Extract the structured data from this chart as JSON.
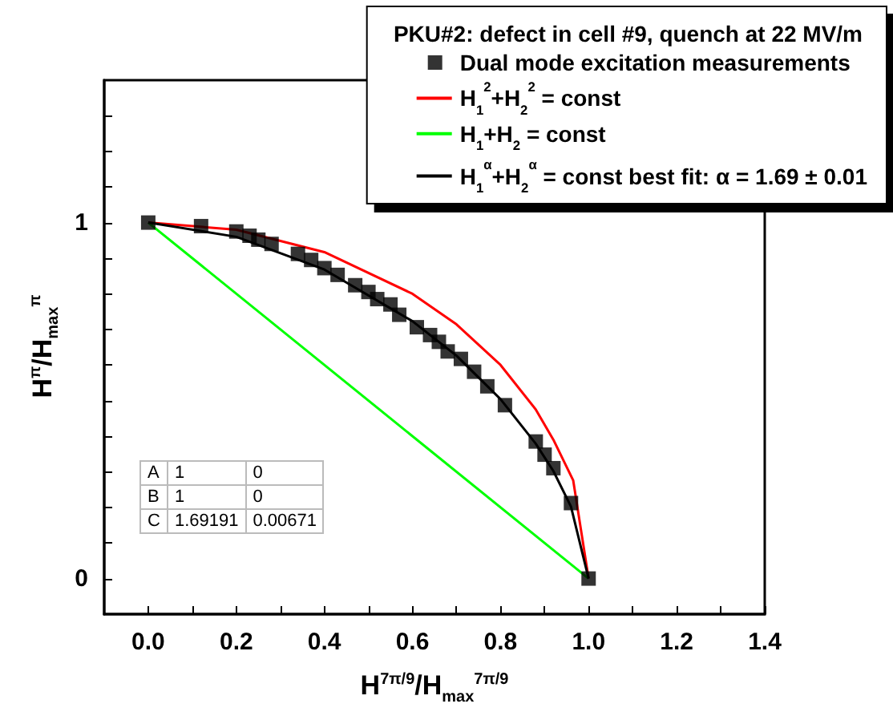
{
  "chart_data": {
    "type": "scatter",
    "legend_title": "PKU#2: defect in cell #9, quench at 22 MV/m",
    "xlabel": "H$^{7π/9}$/H$_{max}$$^{7π/9}$",
    "ylabel": "H$^{π}$/H$_{max}$$^{π}$",
    "xlim": [
      -0.1,
      1.4
    ],
    "ylim": [
      -0.1,
      1.4
    ],
    "xticks": [
      {
        "value": 0,
        "label": "0.0"
      },
      {
        "value": 0.1,
        "label": null
      },
      {
        "value": 0.2,
        "label": "0.2"
      },
      {
        "value": 0.3,
        "label": null
      },
      {
        "value": 0.4,
        "label": "0.4"
      },
      {
        "value": 0.5,
        "label": null
      },
      {
        "value": 0.6,
        "label": "0.6"
      },
      {
        "value": 0.7,
        "label": null
      },
      {
        "value": 0.8,
        "label": "0.8"
      },
      {
        "value": 0.9,
        "label": null
      },
      {
        "value": 1,
        "label": "1.0"
      },
      {
        "value": 1.1,
        "label": null
      },
      {
        "value": 1.2,
        "label": "1.2"
      },
      {
        "value": 1.3,
        "label": null
      },
      {
        "value": 1.4,
        "label": "1.4"
      }
    ],
    "yticks": [
      {
        "value": 0,
        "label": "0"
      },
      {
        "value": 0.1,
        "label": null
      },
      {
        "value": 0.2,
        "label": null
      },
      {
        "value": 0.3,
        "label": null
      },
      {
        "value": 0.4,
        "label": null
      },
      {
        "value": 0.5,
        "label": null
      },
      {
        "value": 0.6,
        "label": null
      },
      {
        "value": 0.7,
        "label": null
      },
      {
        "value": 0.8,
        "label": null
      },
      {
        "value": 0.9,
        "label": null
      },
      {
        "value": 1,
        "label": "1"
      },
      {
        "value": 1.1,
        "label": null
      },
      {
        "value": 1.2,
        "label": null
      },
      {
        "value": 1.3,
        "label": null
      }
    ],
    "grid": false,
    "legend": "top right",
    "series": [
      {
        "name": "Dual mode excitation measurements",
        "marker": "square",
        "color": "#000000",
        "x": [
          0,
          0.12,
          0.2,
          0.23,
          0.25,
          0.28,
          0.34,
          0.37,
          0.4,
          0.43,
          0.47,
          0.5,
          0.52,
          0.55,
          0.57,
          0.61,
          0.64,
          0.66,
          0.68,
          0.71,
          0.74,
          0.77,
          0.81,
          0.88,
          0.9,
          0.92,
          0.96,
          1.0
        ],
        "values": [
          1,
          0.99,
          0.975,
          0.963,
          0.952,
          0.94,
          0.912,
          0.895,
          0.872,
          0.853,
          0.824,
          0.805,
          0.785,
          0.77,
          0.741,
          0.706,
          0.684,
          0.665,
          0.638,
          0.617,
          0.581,
          0.54,
          0.487,
          0.385,
          0.348,
          0.31,
          0.212,
          0
        ]
      },
      {
        "name": "H$_{1}$$^{2}$+H$_{2}$$^{2}$ = const",
        "type": "line",
        "color": "#ff0000",
        "x": [
          0,
          0.2,
          0.4,
          0.6,
          0.7,
          0.8,
          0.88,
          0.92,
          0.965,
          1.0
        ],
        "values": [
          1,
          0.98,
          0.917,
          0.8,
          0.714,
          0.6,
          0.475,
          0.39,
          0.276,
          0
        ]
      },
      {
        "name": "H$_{1}$+H$_{2}$ = const",
        "type": "line",
        "color": "#00ff00",
        "x": [
          0,
          1
        ],
        "values": [
          1,
          0
        ]
      },
      {
        "name": "H$_{1}$$^{α}$+H$_{2}$$^{α}$ = const best fit: α = 1.69 ± 0.01",
        "type": "line",
        "color": "#000000",
        "x": [
          0,
          0.2,
          0.4,
          0.6,
          0.7,
          0.8,
          0.88,
          0.92,
          0.96,
          1.0
        ],
        "values": [
          1,
          0.96,
          0.868,
          0.723,
          0.626,
          0.504,
          0.379,
          0.302,
          0.202,
          0
        ]
      }
    ],
    "annotations": [
      "A",
      "1",
      "0",
      "B",
      "1",
      "0",
      "C",
      "1.69191",
      "0.00671"
    ]
  }
}
